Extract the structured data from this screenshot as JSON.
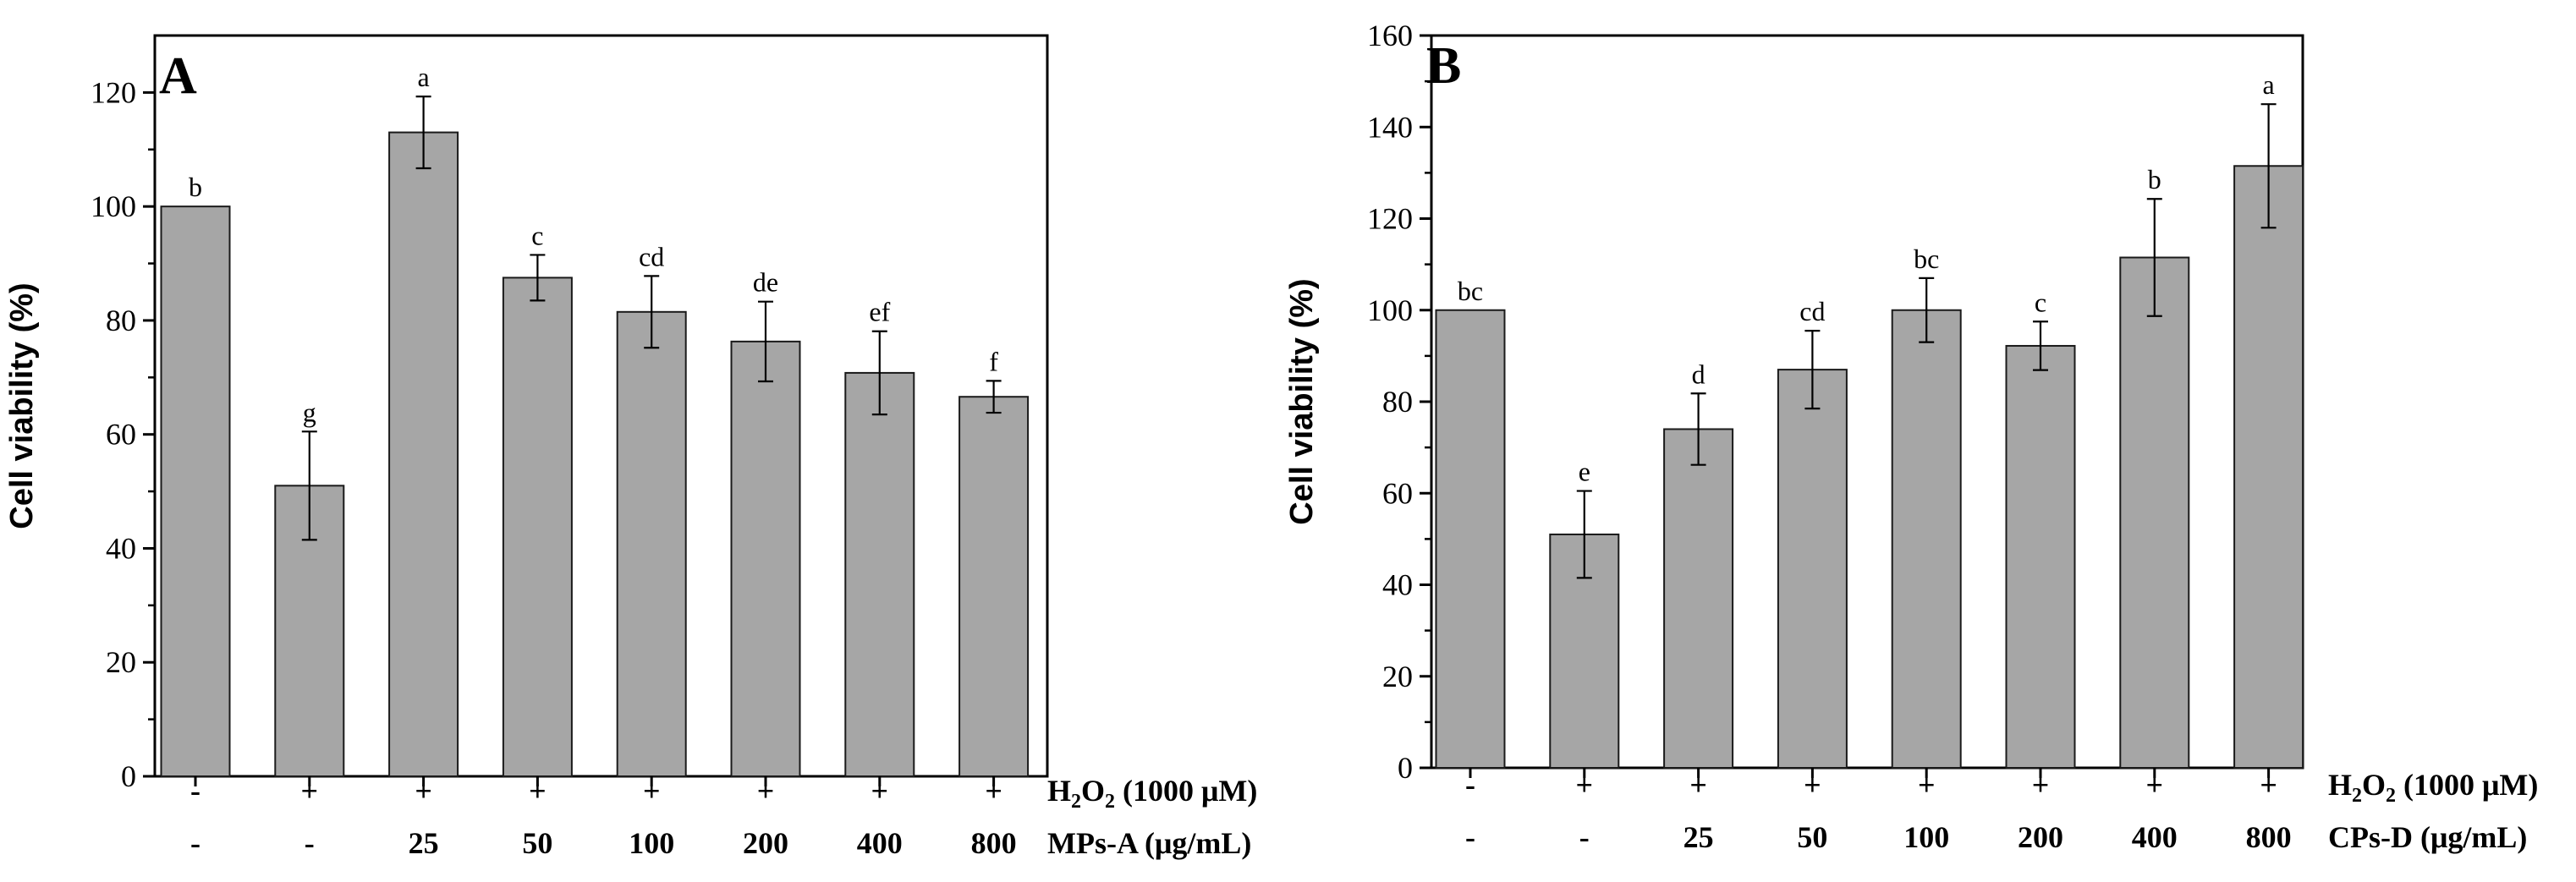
{
  "colors": {
    "bar_fill": "#a6a6a6",
    "bar_stroke": "#1a1a1a",
    "axis": "#000000"
  },
  "chart_data": [
    {
      "type": "bar",
      "panel_label": "A",
      "title": "",
      "xlabel": "",
      "ylabel": "Cell viability (%)",
      "ylim": [
        0,
        130
      ],
      "yticks": [
        0,
        20,
        40,
        60,
        80,
        100,
        120
      ],
      "values": [
        100,
        51,
        113,
        87.5,
        81.5,
        76.3,
        70.8,
        66.6
      ],
      "errors": [
        0,
        9.5,
        6.3,
        4,
        6.3,
        7,
        7.3,
        2.8
      ],
      "significance": [
        "b",
        "g",
        "a",
        "c",
        "cd",
        "de",
        "ef",
        "f"
      ],
      "row1": {
        "label": "H",
        "label_sub": "2",
        "label_rest": "O",
        "label_sub2": "2",
        "label_tail": " (1000 μM)",
        "values": [
          "-",
          "+",
          "+",
          "+",
          "+",
          "+",
          "+",
          "+"
        ]
      },
      "row2": {
        "label": "MPs-A (μg/mL)",
        "values": [
          "-",
          "-",
          "25",
          "50",
          "100",
          "200",
          "400",
          "800"
        ]
      }
    },
    {
      "type": "bar",
      "panel_label": "B",
      "title": "",
      "xlabel": "",
      "ylabel": "Cell viability (%)",
      "ylim": [
        0,
        160
      ],
      "yticks": [
        0,
        20,
        40,
        60,
        80,
        100,
        120,
        140,
        160
      ],
      "values": [
        100,
        51,
        74,
        87,
        100,
        92.2,
        111.5,
        131.5
      ],
      "errors": [
        0,
        9.5,
        7.8,
        8.5,
        7,
        5.3,
        12.8,
        13.5
      ],
      "significance": [
        "bc",
        "e",
        "d",
        "cd",
        "bc",
        "c",
        "b",
        "a"
      ],
      "row1": {
        "label": "H",
        "label_sub": "2",
        "label_rest": "O",
        "label_sub2": "2",
        "label_tail": " (1000 μM)",
        "values": [
          "-",
          "+",
          "+",
          "+",
          "+",
          "+",
          "+",
          "+"
        ]
      },
      "row2": {
        "label": "CPs-D (μg/mL)",
        "values": [
          "-",
          "-",
          "25",
          "50",
          "100",
          "200",
          "400",
          "800"
        ]
      }
    }
  ]
}
